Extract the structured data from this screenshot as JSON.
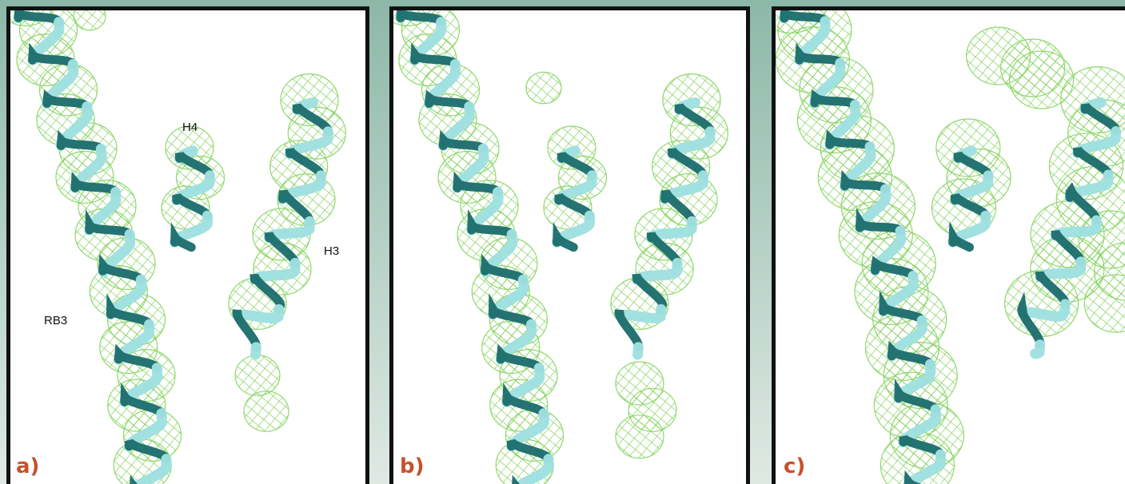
{
  "panels": [
    {
      "label": "a)",
      "annotations": {
        "h4": "H4",
        "h3": "H3",
        "rb3": "RB3"
      }
    },
    {
      "label": "b)"
    },
    {
      "label": "c)"
    }
  ]
}
